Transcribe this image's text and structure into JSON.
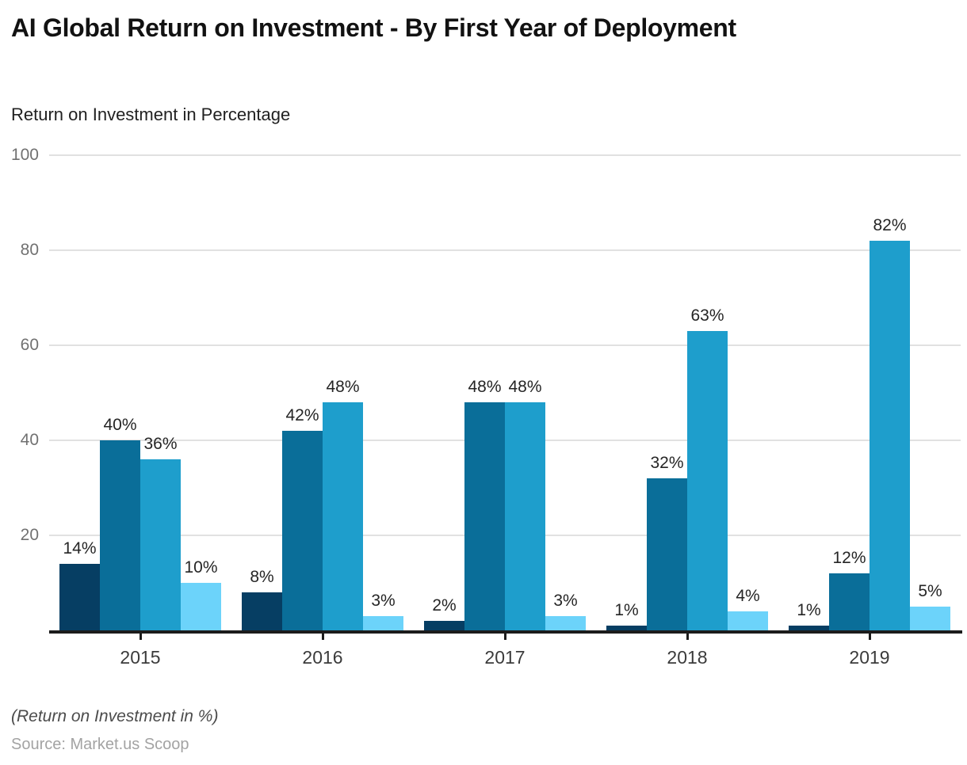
{
  "header": {
    "title": "AI Global Return on Investment - By First Year of Deployment",
    "subtitle": "Return on Investment in Percentage"
  },
  "footer": {
    "note": "(Return on Investment in %)",
    "source": "Source: Market.us Scoop"
  },
  "chart_data": {
    "type": "bar",
    "title": "AI Global Return on Investment - By First Year of Deployment",
    "ylabel": "Return on Investment in Percentage",
    "categories": [
      "2015",
      "2016",
      "2017",
      "2018",
      "2019"
    ],
    "series": [
      {
        "color": "#063e63",
        "values": [
          14,
          8,
          2,
          1,
          1
        ]
      },
      {
        "color": "#0a6e99",
        "values": [
          40,
          42,
          48,
          32,
          12
        ]
      },
      {
        "color": "#1e9ecc",
        "values": [
          36,
          48,
          48,
          63,
          82
        ]
      },
      {
        "color": "#6cd3fa",
        "values": [
          10,
          3,
          3,
          4,
          5
        ]
      }
    ],
    "value_suffix": "%",
    "ylim": [
      0,
      100
    ],
    "yticks": [
      20,
      40,
      60,
      80,
      100
    ],
    "grid": true,
    "legend": "none",
    "gridline_color": "#e1e1e1",
    "axis_color": "#1c1c1c"
  }
}
